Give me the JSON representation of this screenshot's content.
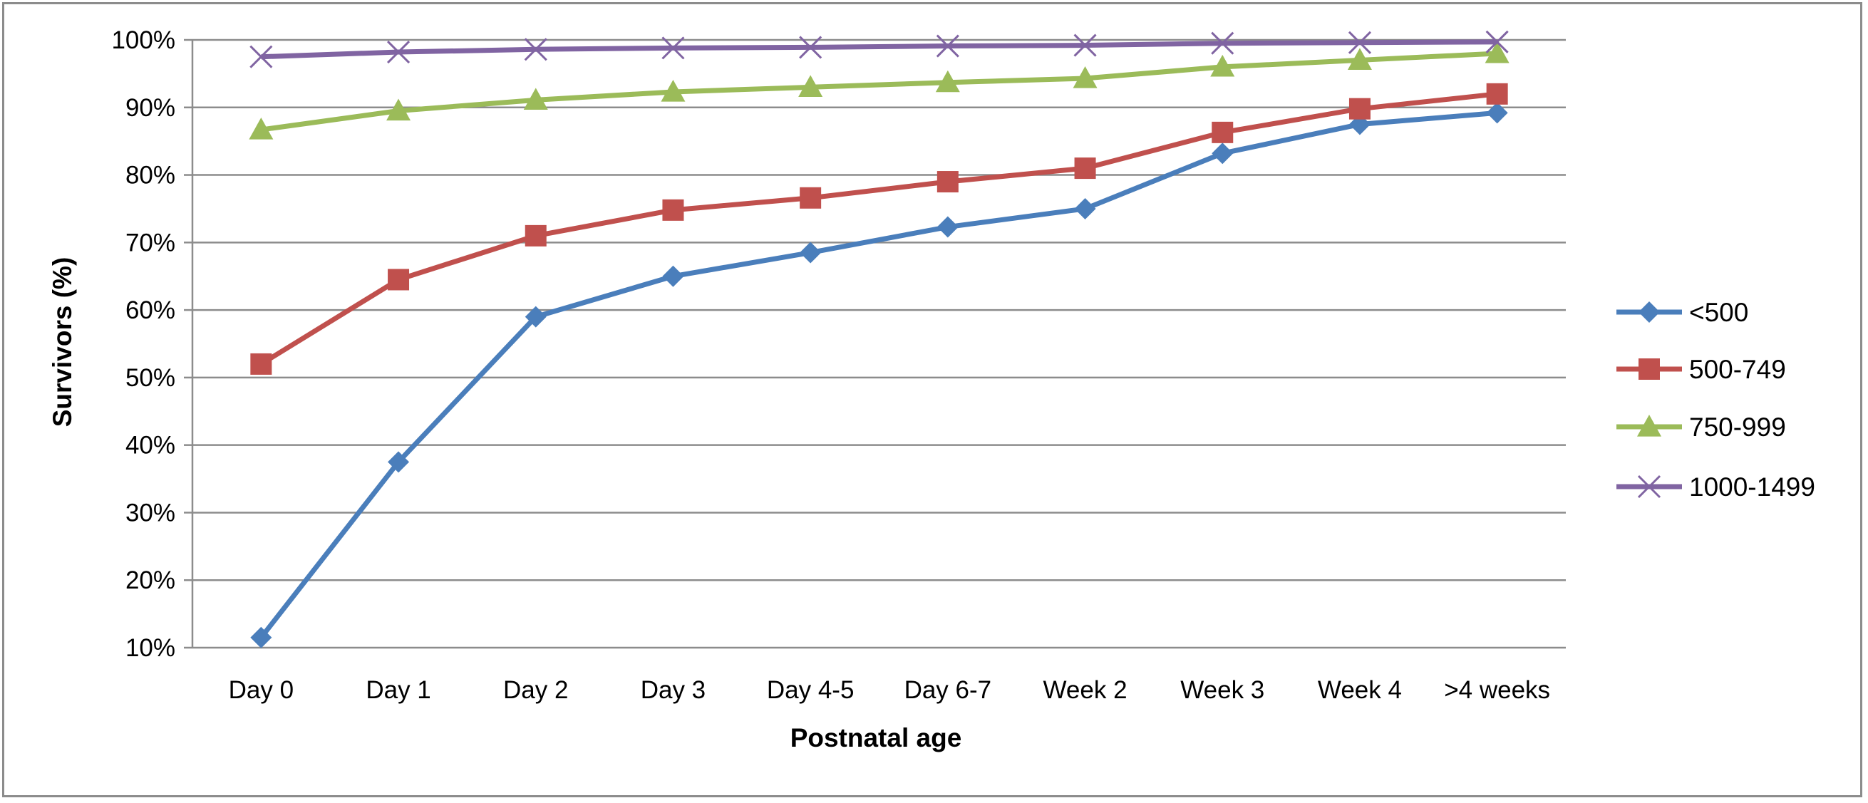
{
  "chart_data": {
    "type": "line",
    "title": "",
    "xlabel": "Postnatal age",
    "ylabel": "Survivors (%)",
    "ylim": [
      10,
      100
    ],
    "yticks": [
      "10%",
      "20%",
      "30%",
      "40%",
      "50%",
      "60%",
      "70%",
      "80%",
      "90%",
      "100%"
    ],
    "ytick_values": [
      10,
      20,
      30,
      40,
      50,
      60,
      70,
      80,
      90,
      100
    ],
    "categories": [
      "Day 0",
      "Day 1",
      "Day 2",
      "Day 3",
      "Day 4-5",
      "Day 6-7",
      "Week 2",
      "Week 3",
      "Week 4",
      ">4 weeks"
    ],
    "grid": true,
    "legend_position": "right",
    "series": [
      {
        "name": "<500",
        "color": "#4a7ebb",
        "marker": "diamond",
        "values": [
          11.5,
          37.5,
          59.0,
          65.0,
          68.5,
          72.3,
          75.0,
          83.2,
          87.5,
          89.2
        ]
      },
      {
        "name": "500-749",
        "color": "#c0504d",
        "marker": "square",
        "values": [
          52.0,
          64.5,
          71.0,
          74.8,
          76.6,
          79.0,
          81.0,
          86.3,
          89.8,
          92.0
        ]
      },
      {
        "name": "750-999",
        "color": "#9bbb59",
        "marker": "triangle",
        "values": [
          86.7,
          89.5,
          91.1,
          92.3,
          93.0,
          93.7,
          94.3,
          96.0,
          97.0,
          98.0
        ]
      },
      {
        "name": "1000-1499",
        "color": "#8064a2",
        "marker": "x",
        "values": [
          97.5,
          98.2,
          98.6,
          98.8,
          98.9,
          99.1,
          99.2,
          99.5,
          99.6,
          99.7
        ]
      }
    ]
  }
}
